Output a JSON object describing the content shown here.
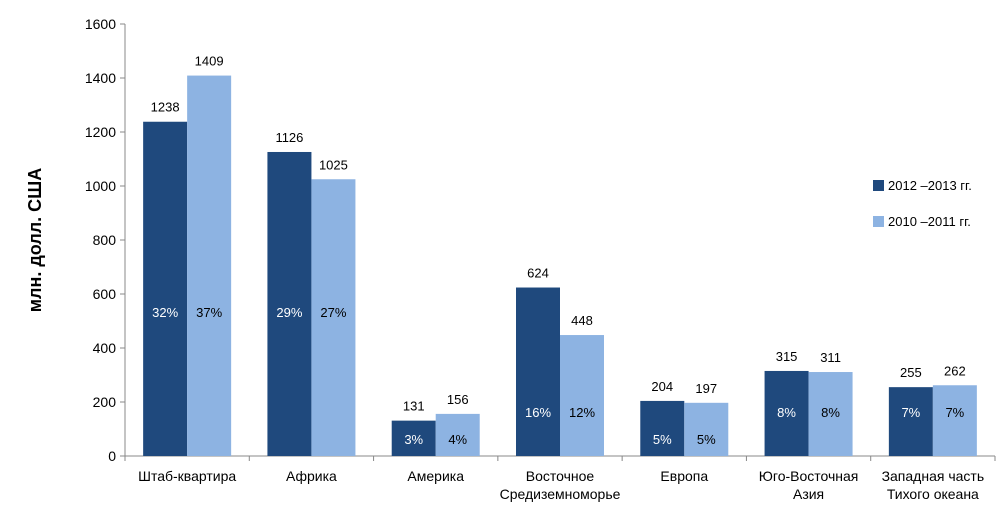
{
  "chart_data": {
    "type": "bar",
    "ylabel": "млн. долл. США",
    "xlabel": "",
    "title": "",
    "ylim": [
      0,
      1600
    ],
    "yticks": [
      0,
      200,
      400,
      600,
      800,
      1000,
      1200,
      1400,
      1600
    ],
    "categories": [
      [
        "Штаб-квартира"
      ],
      [
        "Африка"
      ],
      [
        "Америка"
      ],
      [
        "Восточное",
        "Средиземноморье"
      ],
      [
        "Европа"
      ],
      [
        "Юго-Восточная",
        "Азия"
      ],
      [
        "Западная часть",
        "Тихого океана"
      ]
    ],
    "series": [
      {
        "name": "2012 –2013 гг.",
        "color": "#1f497d",
        "values": [
          1238,
          1126,
          131,
          624,
          204,
          315,
          255
        ],
        "percents": [
          "32%",
          "29%",
          "3%",
          "16%",
          "5%",
          "8%",
          "7%"
        ]
      },
      {
        "name": "2010 –2011 гг.",
        "color": "#8db3e2",
        "values": [
          1409,
          1025,
          156,
          448,
          197,
          311,
          262
        ],
        "percents": [
          "37%",
          "27%",
          "4%",
          "12%",
          "5%",
          "8%",
          "7%"
        ]
      }
    ],
    "legend_position": "right",
    "grid": false
  }
}
